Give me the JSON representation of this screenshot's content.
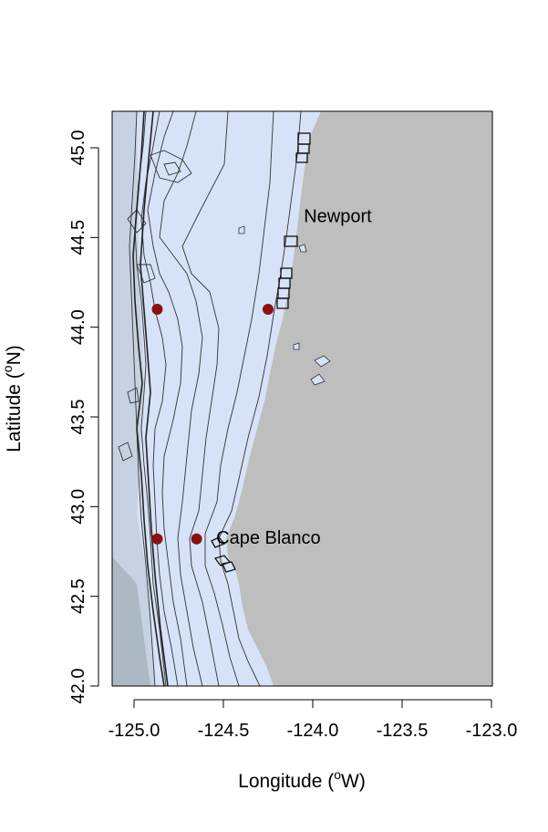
{
  "map": {
    "xlabel_main": "Longitude (",
    "xlabel_sup": "o",
    "xlabel_end": "W)",
    "ylabel_main": "Latitude (",
    "ylabel_sup": "o",
    "ylabel_end": "N)",
    "x_ticks": [
      "-125.0",
      "-124.5",
      "-124.0",
      "-123.5",
      "-123.0"
    ],
    "y_ticks": [
      "42.0",
      "42.5",
      "43.0",
      "43.5",
      "44.0",
      "44.5",
      "45.0"
    ],
    "xlim": [
      -125.12,
      -123.0
    ],
    "ylim": [
      41.98,
      45.2
    ],
    "place_labels": [
      {
        "name": "Newport",
        "lon": -124.05,
        "lat": 44.62
      },
      {
        "name": "Cape Blanco",
        "lon": -124.54,
        "lat": 42.83
      }
    ],
    "stations": [
      {
        "lon": -124.87,
        "lat": 44.1
      },
      {
        "lon": -124.25,
        "lat": 44.1
      },
      {
        "lon": -124.87,
        "lat": 42.82
      },
      {
        "lon": -124.65,
        "lat": 42.82
      }
    ],
    "colors": {
      "ocean": "#d6e2f8",
      "land": "#bebebe",
      "station": "#8b1010",
      "contour": "#333333"
    }
  }
}
